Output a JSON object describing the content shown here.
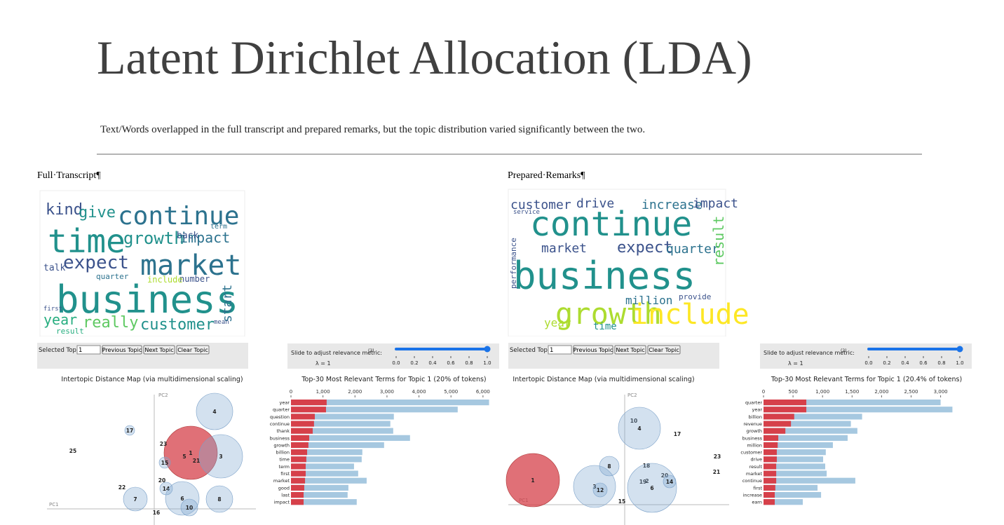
{
  "title": "Latent Dirichlet Allocation (LDA)",
  "subtitle": "Text/Words overlapped in the full transcript and prepared remarks, but the topic distribution varied significantly between the two.",
  "panels": [
    {
      "heading": "Full·Transcript¶",
      "wordcloud": [
        "kind",
        "give",
        "continue",
        "time",
        "growth",
        "impact",
        "expect",
        "market",
        "business",
        "really",
        "customer",
        "year",
        "talk",
        "back",
        "start",
        "number",
        "include",
        "quarter",
        "result",
        "first",
        "term",
        "mean"
      ],
      "controls": {
        "selected_topic_label": "Selected Topic:",
        "selected_topic": "1",
        "buttons": [
          "Previous Topic",
          "Next Topic",
          "Clear Topic"
        ],
        "slider_label": "Slide to adjust relevance metric:",
        "slider_note": "(2)",
        "lambda": "λ = 1",
        "slider_ticks": [
          "0.0",
          "0.2",
          "0.4",
          "0.6",
          "0.8",
          "1.0"
        ]
      },
      "map": {
        "title": "Intertopic Distance Map (via multidimensional scaling)",
        "x_label": "PC1",
        "y_label": "PC2",
        "topics": [
          "4",
          "17",
          "25",
          "1",
          "3",
          "23",
          "5",
          "21",
          "15",
          "20",
          "22",
          "14",
          "7",
          "6",
          "8",
          "10",
          "16"
        ]
      },
      "bars": {
        "type": "bar",
        "title": "Top-30 Most Relevant Terms for Topic 1 (20% of tokens)",
        "categories": [
          "year",
          "quarter",
          "question",
          "continue",
          "thank",
          "business",
          "growth",
          "billion",
          "time",
          "term",
          "first",
          "market",
          "good",
          "last",
          "impact"
        ],
        "series": [
          {
            "name": "overall",
            "color": "#a6c8e0",
            "values": [
              6190,
              5210,
              3215,
              3105,
              3195,
              3720,
              2910,
              2230,
              2210,
              1970,
              2100,
              2365,
              1795,
              1770,
              2055
            ]
          },
          {
            "name": "topic",
            "color": "#d6404a",
            "values": [
              1115,
              1095,
              745,
              720,
              680,
              570,
              545,
              505,
              480,
              460,
              460,
              440,
              415,
              395,
              395
            ]
          }
        ],
        "xlim": [
          0,
          6200
        ],
        "xticks": [
          0,
          {
            "value": 1000,
            "label": "1,000"
          },
          {
            "value": 2000,
            "label": "2,000"
          },
          {
            "value": 3000,
            "label": "3,000"
          },
          {
            "value": 4000,
            "label": "4,000"
          },
          {
            "value": 5000,
            "label": "5,000"
          },
          {
            "value": 6000,
            "label": "6,000"
          }
        ]
      }
    },
    {
      "heading": "Prepared·Remarks¶",
      "wordcloud": [
        "customer",
        "drive",
        "increase",
        "impact",
        "continue",
        "business",
        "market",
        "expect",
        "quarter",
        "result",
        "growth",
        "include",
        "year",
        "time",
        "million",
        "provide",
        "service",
        "performance"
      ],
      "controls": {
        "selected_topic_label": "Selected Topic:",
        "selected_topic": "1",
        "buttons": [
          "Previous Topic",
          "Next Topic",
          "Clear Topic"
        ],
        "slider_label": "Slide to adjust relevance metric:",
        "slider_note": "(2)",
        "lambda": "λ = 1",
        "slider_ticks": [
          "0.0",
          "0.2",
          "0.4",
          "0.6",
          "0.8",
          "1.0"
        ]
      },
      "map": {
        "title": "Intertopic Distance Map (via multidimensional scaling)",
        "x_label": "PC1",
        "y_label": "PC2",
        "topics": [
          "10",
          "4",
          "17",
          "23",
          "21",
          "1",
          "8",
          "18",
          "3",
          "12",
          "20",
          "2",
          "19",
          "6",
          "14",
          "15"
        ]
      },
      "bars": {
        "type": "bar",
        "title": "Top-30 Most Relevant Terms for Topic 1 (20.4% of tokens)",
        "categories": [
          "quarter",
          "year",
          "billion",
          "revenue",
          "growth",
          "business",
          "million",
          "customer",
          "drive",
          "result",
          "market",
          "continue",
          "first",
          "increase",
          "earn"
        ],
        "series": [
          {
            "name": "overall",
            "color": "#a6c8e0",
            "values": [
              3000,
              3200,
              1670,
              1480,
              1590,
              1425,
              1175,
              1055,
              1010,
              1045,
              1070,
              1555,
              915,
              975,
              665
            ]
          },
          {
            "name": "topic",
            "color": "#d6404a",
            "values": [
              725,
              725,
              520,
              465,
              370,
              250,
              240,
              225,
              225,
              215,
              215,
              215,
              200,
              190,
              190
            ]
          }
        ],
        "xlim": [
          0,
          3480
        ],
        "xticks": [
          0,
          500,
          {
            "value": 1000,
            "label": "1,000"
          },
          {
            "value": 1500,
            "label": "1,500"
          },
          {
            "value": 2000,
            "label": "2,000"
          },
          {
            "value": 2500,
            "label": "2,500"
          },
          {
            "value": 3000,
            "label": "3,000"
          }
        ]
      }
    }
  ]
}
